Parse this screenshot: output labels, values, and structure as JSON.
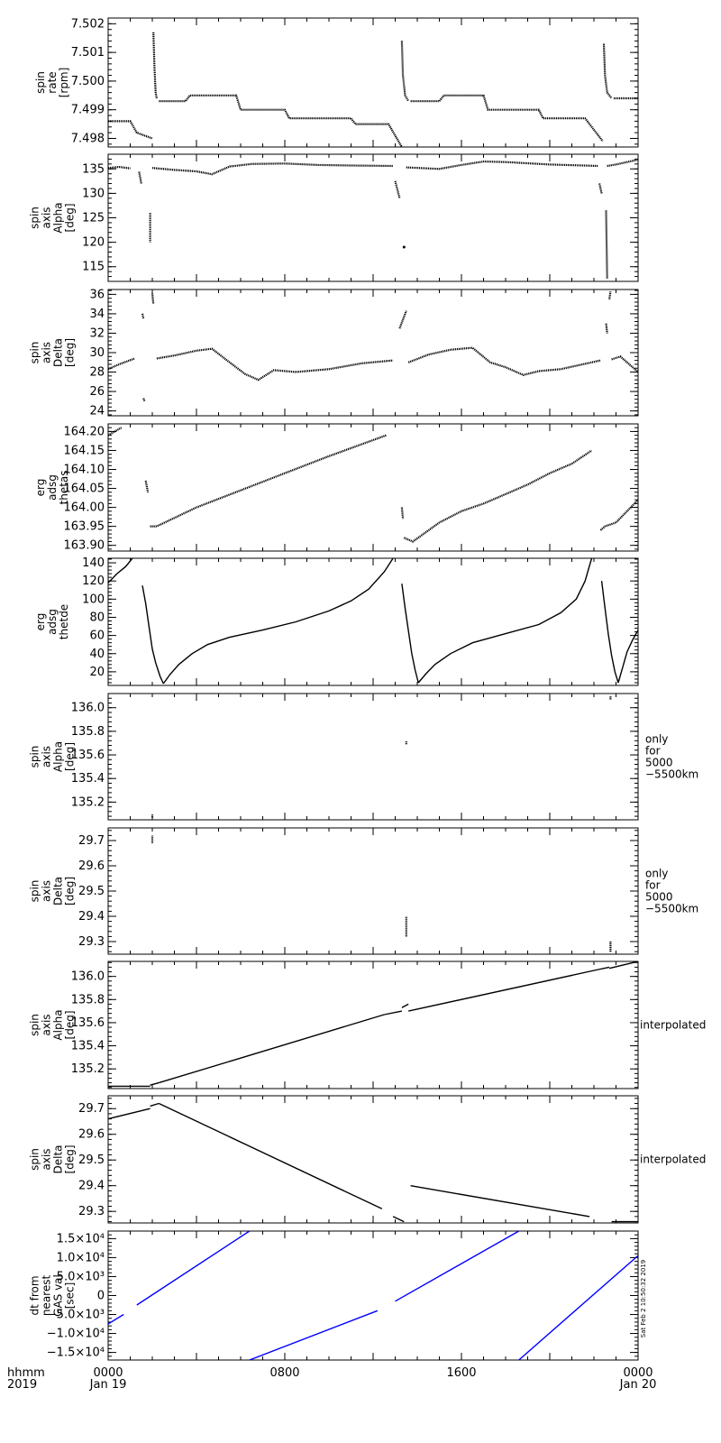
{
  "time_axis": {
    "label_line1": "hhmm",
    "label_line2": "2019",
    "range_hours": [
      0,
      24
    ],
    "ticks": [
      {
        "hour": 0,
        "line1": "0000",
        "line2": "Jan 19"
      },
      {
        "hour": 8,
        "line1": "0800",
        "line2": ""
      },
      {
        "hour": 16,
        "line1": "1600",
        "line2": ""
      },
      {
        "hour": 24,
        "line1": "0000",
        "line2": "Jan 20"
      }
    ]
  },
  "footer_note": "Sat Feb 2 10:50:32 2019",
  "chart_data": [
    {
      "type": "scatter",
      "ylabel": [
        "spin",
        "rate",
        "[rpm]"
      ],
      "ylim": [
        7.4977,
        7.5022
      ],
      "yticks": [
        7.498,
        7.499,
        7.5,
        7.501,
        7.502
      ],
      "ytick_labels": [
        "7.498",
        "7.499",
        "7.500",
        "7.501",
        "7.502"
      ],
      "side_note": [],
      "color": "#000000",
      "series": [
        {
          "x": [
            0.0,
            1.0,
            1.3,
            2.0
          ],
          "y": [
            7.4986,
            7.4986,
            7.4982,
            7.498
          ]
        },
        {
          "x": [
            2.05,
            2.1,
            2.15,
            2.2
          ],
          "y": [
            7.5017,
            7.5005,
            7.4996,
            7.4994
          ]
        },
        {
          "x": [
            2.3,
            3.5,
            3.7,
            5.8,
            6.0,
            8.0,
            8.2,
            11.0,
            11.2,
            12.7,
            13.3
          ],
          "y": [
            7.4993,
            7.4993,
            7.4995,
            7.4995,
            7.499,
            7.499,
            7.4987,
            7.4987,
            7.4985,
            7.4985,
            7.4977
          ]
        },
        {
          "x": [
            13.3,
            13.35,
            13.45,
            13.6
          ],
          "y": [
            7.5014,
            7.5002,
            7.4995,
            7.4993
          ]
        },
        {
          "x": [
            13.7,
            15.0,
            15.2,
            17.0,
            17.2,
            19.5,
            19.7,
            21.6,
            22.4
          ],
          "y": [
            7.4993,
            7.4993,
            7.4995,
            7.4995,
            7.499,
            7.499,
            7.4987,
            7.4987,
            7.4979
          ]
        },
        {
          "x": [
            22.45,
            22.5,
            22.6,
            22.8
          ],
          "y": [
            7.5013,
            7.5002,
            7.4996,
            7.4994
          ]
        },
        {
          "x": [
            22.9,
            24.0
          ],
          "y": [
            7.4994,
            7.4994
          ]
        }
      ]
    },
    {
      "type": "scatter",
      "ylabel": [
        "spin",
        "axis",
        "Alpha",
        "[deg]"
      ],
      "ylim": [
        112,
        138
      ],
      "yticks": [
        115,
        120,
        125,
        130,
        135
      ],
      "ytick_labels": [
        "115",
        "120",
        "125",
        "130",
        "135"
      ],
      "side_note": [],
      "color": "#000000",
      "series": [
        {
          "x": [
            0.0,
            0.5,
            1.0
          ],
          "y": [
            135.2,
            135.4,
            135.1
          ]
        },
        {
          "x": [
            1.4,
            1.5
          ],
          "y": [
            134.4,
            132.0
          ]
        },
        {
          "x": [
            1.9,
            1.9
          ],
          "y": [
            126.0,
            120.0
          ]
        },
        {
          "x": [
            2.0,
            3.0,
            4.0,
            4.7,
            5.5,
            6.5,
            8.0,
            9.5,
            11.0,
            12.9
          ],
          "y": [
            135.2,
            134.8,
            134.5,
            133.9,
            135.5,
            136.0,
            136.1,
            135.8,
            135.7,
            135.6
          ]
        },
        {
          "x": [
            13.0,
            13.2
          ],
          "y": [
            132.5,
            129.0
          ]
        },
        {
          "x": [
            13.4
          ],
          "y": [
            119.0
          ]
        },
        {
          "x": [
            13.5,
            15.0,
            16.0,
            17.0,
            18.0,
            20.0,
            22.2
          ],
          "y": [
            135.3,
            135.0,
            135.8,
            136.5,
            136.4,
            135.9,
            135.6
          ]
        },
        {
          "x": [
            22.25,
            22.35
          ],
          "y": [
            132.0,
            130.0
          ]
        },
        {
          "x": [
            22.55,
            22.6
          ],
          "y": [
            126.5,
            112.5
          ]
        },
        {
          "x": [
            22.6,
            23.0,
            23.5,
            24.0
          ],
          "y": [
            135.6,
            135.9,
            136.4,
            136.9
          ]
        }
      ]
    },
    {
      "type": "scatter",
      "ylabel": [
        "spin",
        "axis",
        "Delta",
        "[deg]"
      ],
      "ylim": [
        23.5,
        36.5
      ],
      "yticks": [
        24,
        26,
        28,
        30,
        32,
        34,
        36
      ],
      "ytick_labels": [
        "24",
        "26",
        "28",
        "30",
        "32",
        "34",
        "36"
      ],
      "side_note": [],
      "color": "#000000",
      "series": [
        {
          "x": [
            0.0,
            0.5,
            1.2
          ],
          "y": [
            28.3,
            28.8,
            29.4
          ]
        },
        {
          "x": [
            1.55,
            1.6
          ],
          "y": [
            34.0,
            33.5
          ]
        },
        {
          "x": [
            1.6,
            1.65
          ],
          "y": [
            25.3,
            25.0
          ]
        },
        {
          "x": [
            2.0,
            2.05
          ],
          "y": [
            36.1,
            35.0
          ]
        },
        {
          "x": [
            2.2,
            3.0,
            4.0,
            4.7,
            5.5,
            6.2,
            6.8,
            7.5,
            8.5,
            10.0,
            11.5,
            12.9
          ],
          "y": [
            29.4,
            29.7,
            30.2,
            30.4,
            29.0,
            27.8,
            27.2,
            28.2,
            28.0,
            28.3,
            28.9,
            29.2
          ]
        },
        {
          "x": [
            13.2,
            13.5
          ],
          "y": [
            32.5,
            34.3
          ]
        },
        {
          "x": [
            13.6,
            14.5,
            15.5,
            16.5,
            17.3,
            18.0,
            18.8,
            19.5,
            20.5,
            21.5,
            22.3
          ],
          "y": [
            29.0,
            29.8,
            30.3,
            30.5,
            29.0,
            28.5,
            27.7,
            28.1,
            28.3,
            28.8,
            29.2
          ]
        },
        {
          "x": [
            22.55,
            22.6
          ],
          "y": [
            33.0,
            32.0
          ]
        },
        {
          "x": [
            22.7,
            22.75
          ],
          "y": [
            35.5,
            36.3
          ]
        },
        {
          "x": [
            22.8,
            23.2,
            23.6,
            24.0
          ],
          "y": [
            29.3,
            29.6,
            28.8,
            28.0
          ]
        }
      ]
    },
    {
      "type": "scatter",
      "ylabel": [
        "erg",
        "adsg",
        "thetas"
      ],
      "ylim": [
        163.885,
        164.22
      ],
      "yticks": [
        163.9,
        163.95,
        164.0,
        164.05,
        164.1,
        164.15,
        164.2
      ],
      "ytick_labels": [
        "163.90",
        "163.95",
        "164.00",
        "164.05",
        "164.10",
        "164.15",
        "164.20"
      ],
      "side_note": [],
      "color": "#000000",
      "series": [
        {
          "x": [
            0.0,
            0.6
          ],
          "y": [
            164.19,
            164.21
          ]
        },
        {
          "x": [
            1.7,
            1.8
          ],
          "y": [
            164.07,
            164.04
          ]
        },
        {
          "x": [
            1.9,
            2.2,
            4.0,
            6.0,
            8.0,
            10.0,
            12.6
          ],
          "y": [
            163.95,
            163.95,
            164.0,
            164.045,
            164.09,
            164.135,
            164.19
          ]
        },
        {
          "x": [
            13.3,
            13.35
          ],
          "y": [
            164.0,
            163.97
          ]
        },
        {
          "x": [
            13.4,
            13.8,
            15.0,
            16.0,
            17.0,
            18.0,
            19.0,
            20.0,
            21.0,
            21.9
          ],
          "y": [
            163.92,
            163.91,
            163.96,
            163.99,
            164.01,
            164.035,
            164.06,
            164.09,
            164.115,
            164.15
          ]
        },
        {
          "x": [
            22.3,
            22.5,
            23.0,
            24.0
          ],
          "y": [
            163.94,
            163.95,
            163.96,
            164.02
          ]
        }
      ]
    },
    {
      "type": "line",
      "ylabel": [
        "erg",
        "adsg",
        "thetde"
      ],
      "ylim": [
        5,
        145
      ],
      "yticks": [
        20,
        40,
        60,
        80,
        100,
        120,
        140
      ],
      "ytick_labels": [
        "20",
        "40",
        "60",
        "80",
        "100",
        "120",
        "140"
      ],
      "side_note": [],
      "color": "#000000",
      "series": [
        {
          "x": [
            0.0,
            0.4,
            0.8,
            1.1
          ],
          "y": [
            118,
            128,
            136,
            145
          ]
        },
        {
          "x": [
            1.55,
            1.7,
            1.85,
            2.0,
            2.15,
            2.35,
            2.5
          ],
          "y": [
            115,
            95,
            70,
            45,
            30,
            15,
            7
          ]
        },
        {
          "x": [
            2.5,
            2.8,
            3.2,
            3.8,
            4.5,
            5.5,
            7.0,
            8.5,
            10.0,
            11.0,
            11.8,
            12.5,
            12.9
          ],
          "y": [
            7,
            17,
            28,
            40,
            50,
            58,
            66,
            75,
            87,
            98,
            111,
            130,
            145
          ]
        },
        {
          "x": [
            13.3,
            13.45,
            13.6,
            13.75,
            13.9,
            14.05
          ],
          "y": [
            117,
            90,
            65,
            40,
            22,
            8
          ]
        },
        {
          "x": [
            14.05,
            14.4,
            14.8,
            15.5,
            16.5,
            18.0,
            19.5,
            20.5,
            21.2,
            21.6,
            21.9
          ],
          "y": [
            8,
            18,
            28,
            40,
            52,
            62,
            72,
            85,
            100,
            120,
            145
          ]
        },
        {
          "x": [
            22.35,
            22.5,
            22.65,
            22.8,
            22.95,
            23.1
          ],
          "y": [
            120,
            90,
            62,
            38,
            20,
            8
          ]
        },
        {
          "x": [
            23.1,
            23.3,
            23.5,
            23.75,
            24.0
          ],
          "y": [
            8,
            25,
            42,
            55,
            66
          ]
        }
      ]
    },
    {
      "type": "scatter",
      "ylabel": [
        "spin",
        "axis",
        "Alpha",
        "[deg]"
      ],
      "ylim": [
        135.05,
        136.12
      ],
      "yticks": [
        135.2,
        135.4,
        135.6,
        135.8,
        136.0
      ],
      "ytick_labels": [
        "135.2",
        "135.4",
        "135.6",
        "135.8",
        "136.0"
      ],
      "side_note": [
        "only",
        "for",
        "5000",
        "−5500km"
      ],
      "color": "#000000",
      "series": [
        {
          "x": [
            2.0,
            2.0
          ],
          "y": [
            135.07,
            135.1
          ]
        },
        {
          "x": [
            13.5,
            13.5
          ],
          "y": [
            135.69,
            135.72
          ]
        },
        {
          "x": [
            22.75,
            22.75
          ],
          "y": [
            136.07,
            136.1
          ]
        }
      ]
    },
    {
      "type": "scatter",
      "ylabel": [
        "spin",
        "axis",
        "Delta",
        "[deg]"
      ],
      "ylim": [
        29.25,
        29.75
      ],
      "yticks": [
        29.3,
        29.4,
        29.5,
        29.6,
        29.7
      ],
      "ytick_labels": [
        "29.3",
        "29.4",
        "29.5",
        "29.6",
        "29.7"
      ],
      "side_note": [
        "only",
        "for",
        "5000",
        "−5500km"
      ],
      "color": "#000000",
      "series": [
        {
          "x": [
            2.0,
            2.0
          ],
          "y": [
            29.69,
            29.72
          ]
        },
        {
          "x": [
            13.5,
            13.5
          ],
          "y": [
            29.32,
            29.4
          ]
        },
        {
          "x": [
            22.75,
            22.75
          ],
          "y": [
            29.26,
            29.3
          ]
        }
      ]
    },
    {
      "type": "line",
      "ylabel": [
        "spin",
        "axis",
        "Alpha",
        "[deg]"
      ],
      "ylim": [
        135.03,
        136.13
      ],
      "yticks": [
        135.2,
        135.4,
        135.6,
        135.8,
        136.0
      ],
      "ytick_labels": [
        "135.2",
        "135.4",
        "135.6",
        "135.8",
        "136.0"
      ],
      "side_note": [
        "interpolated"
      ],
      "color": "#000000",
      "series": [
        {
          "x": [
            0.0,
            1.9
          ],
          "y": [
            135.05,
            135.05
          ]
        },
        {
          "x": [
            1.9,
            2.3
          ],
          "y": [
            135.06,
            135.08
          ]
        },
        {
          "x": [
            2.3,
            12.5
          ],
          "y": [
            135.08,
            135.67
          ]
        },
        {
          "x": [
            12.5,
            13.3
          ],
          "y": [
            135.67,
            135.7
          ]
        },
        {
          "x": [
            13.3,
            13.6
          ],
          "y": [
            135.73,
            135.76
          ]
        },
        {
          "x": [
            13.6,
            22.2
          ],
          "y": [
            135.7,
            136.06
          ]
        },
        {
          "x": [
            22.2,
            22.7
          ],
          "y": [
            136.06,
            136.08
          ]
        },
        {
          "x": [
            22.7,
            24.0
          ],
          "y": [
            136.07,
            136.13
          ]
        }
      ]
    },
    {
      "type": "line",
      "ylabel": [
        "spin",
        "axis",
        "Delta",
        "[deg]"
      ],
      "ylim": [
        29.255,
        29.75
      ],
      "yticks": [
        29.3,
        29.4,
        29.5,
        29.6,
        29.7
      ],
      "ytick_labels": [
        "29.3",
        "29.4",
        "29.5",
        "29.6",
        "29.7"
      ],
      "side_note": [
        "interpolated"
      ],
      "color": "#000000",
      "series": [
        {
          "x": [
            0.0,
            1.9
          ],
          "y": [
            29.66,
            29.7
          ]
        },
        {
          "x": [
            1.9,
            2.3
          ],
          "y": [
            29.71,
            29.72
          ]
        },
        {
          "x": [
            2.3,
            12.4
          ],
          "y": [
            29.72,
            29.31
          ]
        },
        {
          "x": [
            12.9,
            13.4
          ],
          "y": [
            29.28,
            29.26
          ]
        },
        {
          "x": [
            13.7,
            21.8
          ],
          "y": [
            29.4,
            29.28
          ]
        },
        {
          "x": [
            22.8,
            24.0
          ],
          "y": [
            29.26,
            29.26
          ]
        }
      ]
    },
    {
      "type": "line",
      "ylabel": [
        "dt from",
        "nearest",
        "GAS val",
        "[sec]"
      ],
      "ylim": [
        -17000,
        17000
      ],
      "yticks": [
        -15000,
        -10000,
        -5000,
        0,
        5000,
        10000,
        15000
      ],
      "ytick_labels": [
        "−1.5×10⁴",
        "−1.0×10⁴",
        "−5.0×10³",
        "0",
        "5.0×10³",
        "1.0×10⁴",
        "1.5×10⁴"
      ],
      "side_note": [],
      "color": "#0000ff",
      "series": [
        {
          "x": [
            0.0,
            0.7
          ],
          "y": [
            -7500,
            -5000
          ]
        },
        {
          "x": [
            1.3,
            6.4
          ],
          "y": [
            -2500,
            17000
          ]
        },
        {
          "x": [
            6.4,
            12.2
          ],
          "y": [
            -17000,
            -4000
          ]
        },
        {
          "x": [
            13.0,
            18.6
          ],
          "y": [
            -1500,
            17000
          ]
        },
        {
          "x": [
            18.6,
            23.8
          ],
          "y": [
            -17000,
            9500
          ]
        },
        {
          "x": [
            23.8,
            24.0
          ],
          "y": [
            9500,
            10500
          ]
        }
      ]
    }
  ]
}
